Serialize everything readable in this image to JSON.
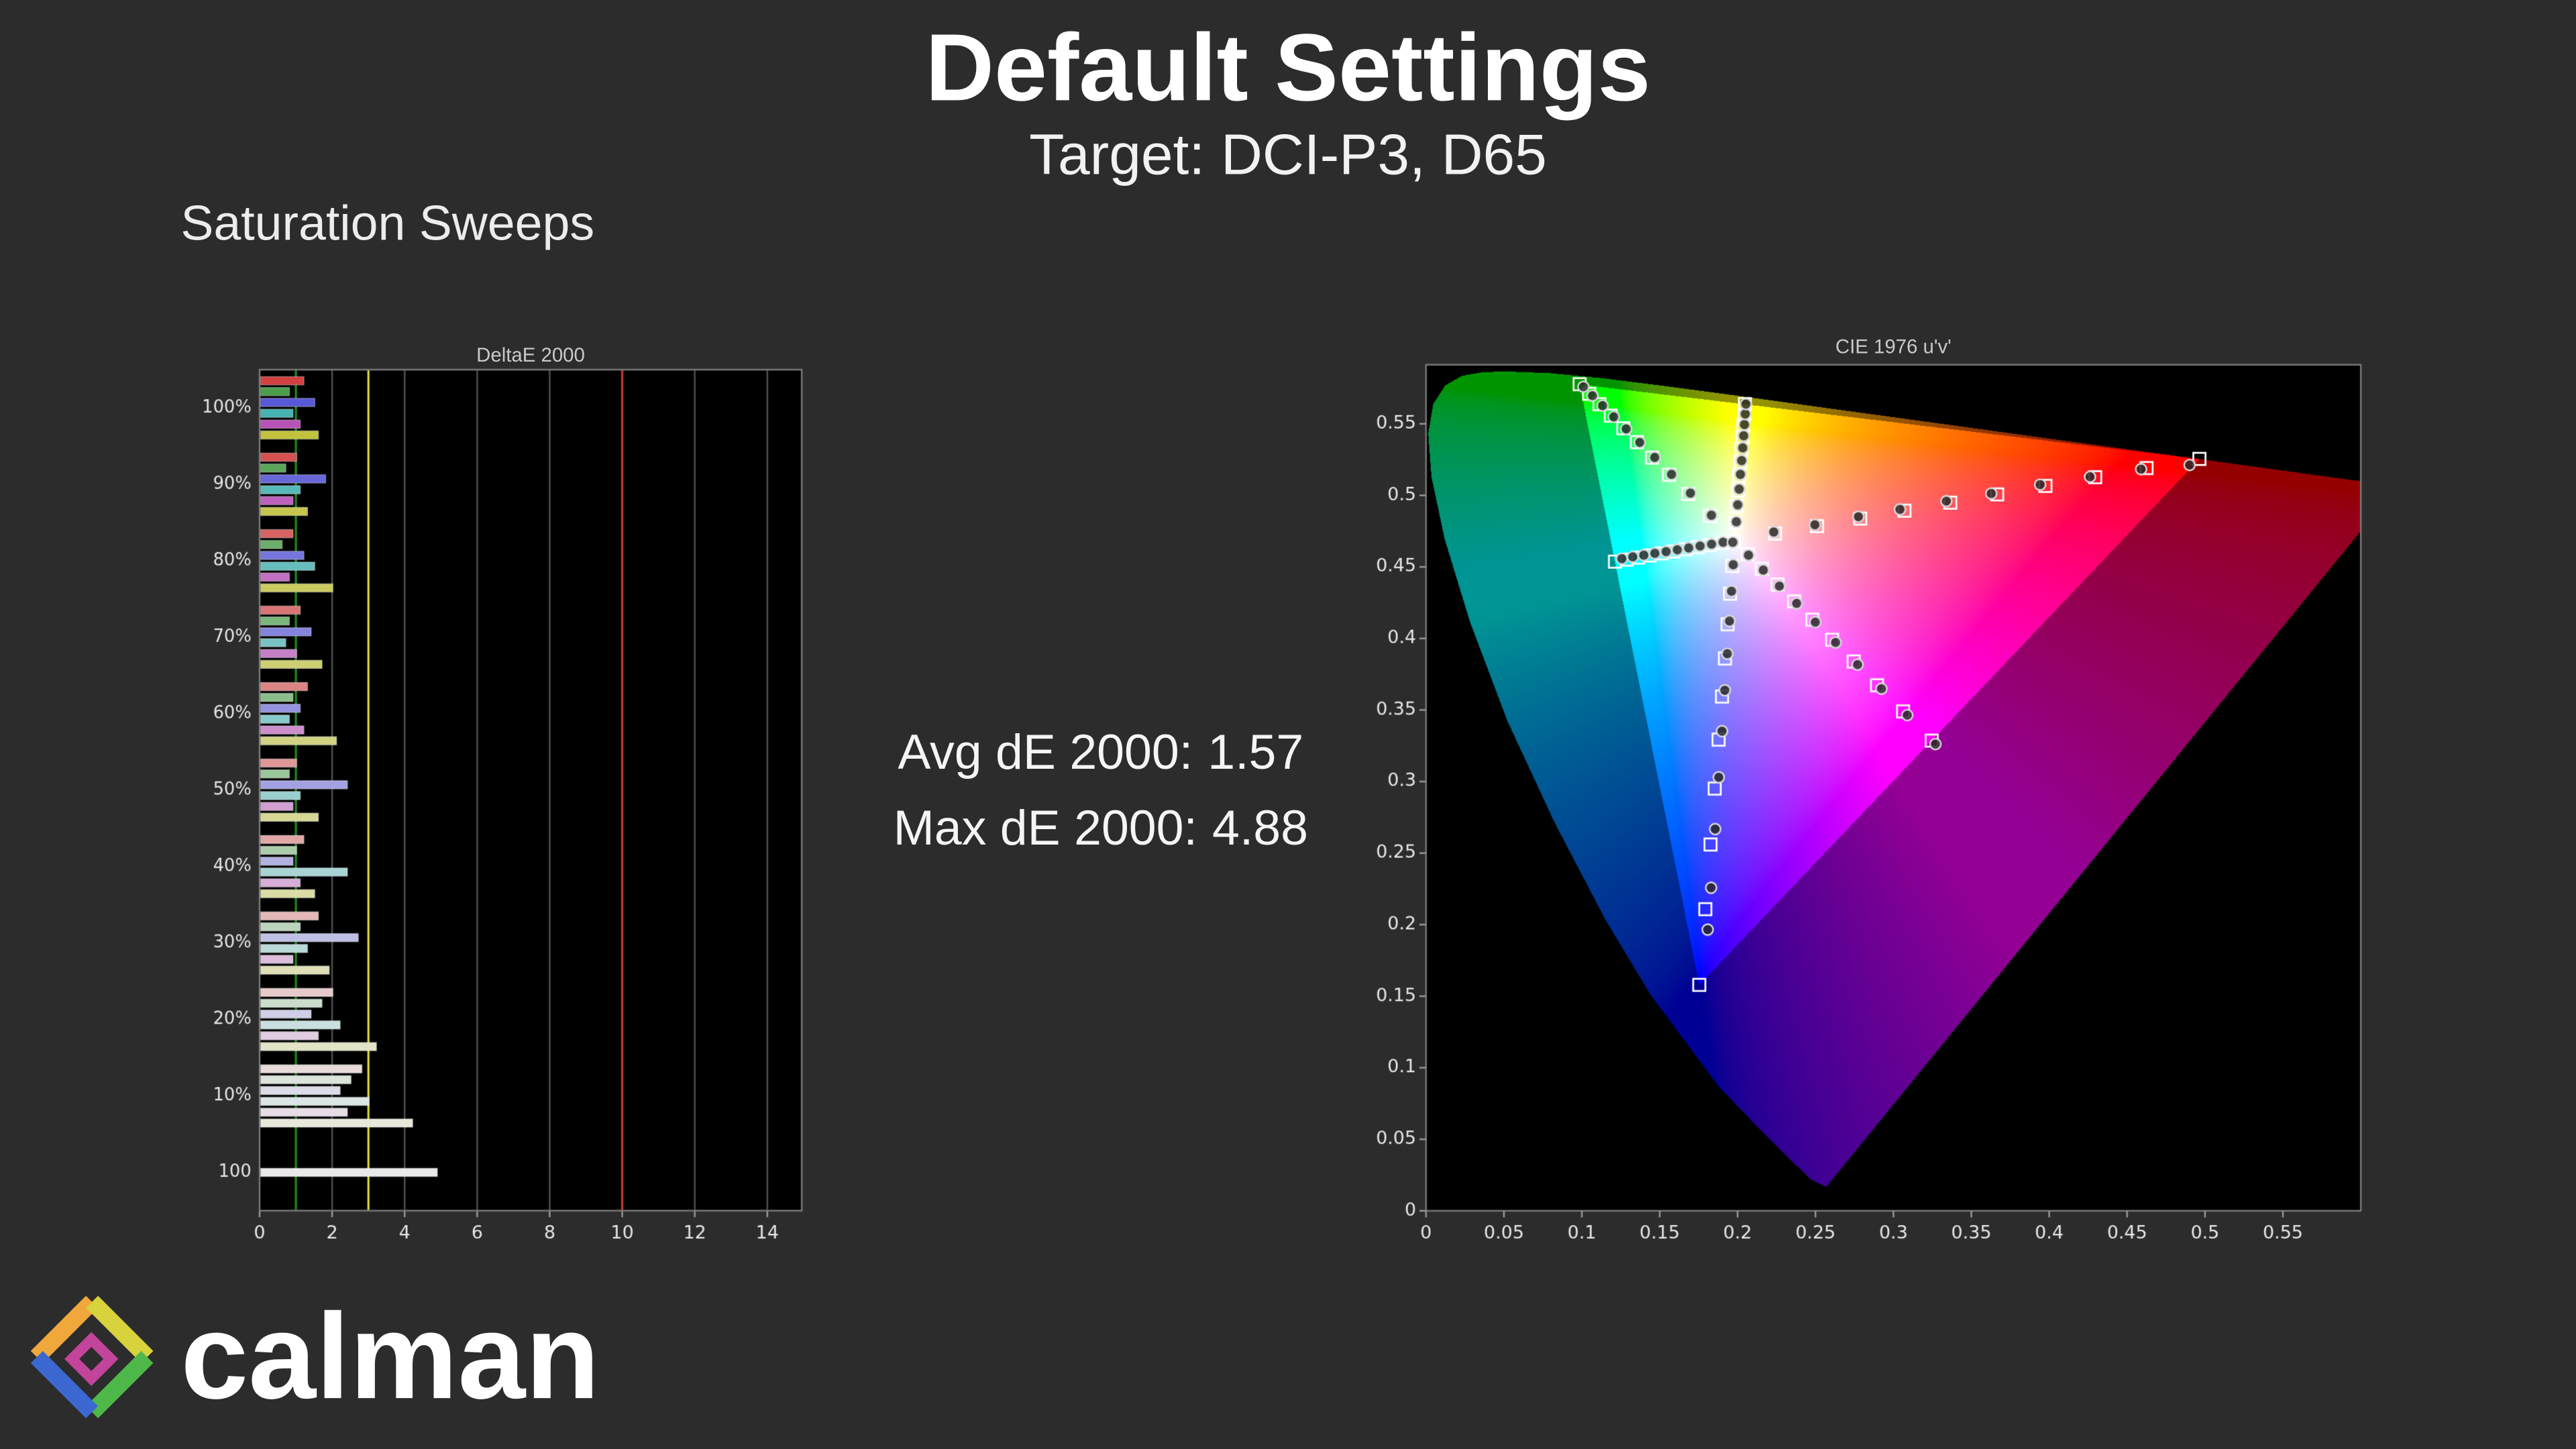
{
  "page": {
    "background": "#2c2c2c"
  },
  "header": {
    "title": "Default Settings",
    "subtitle": "Target: DCI-P3, D65"
  },
  "section_label": "Saturation Sweeps",
  "stats": {
    "avg_label": "Avg dE 2000:",
    "avg_value": "1.57",
    "max_label": "Max dE 2000:",
    "max_value": "4.88"
  },
  "logo": {
    "text": "calman",
    "icon": "calman-diamond-logo"
  },
  "chart_data": [
    {
      "id": "deltae-2000-bars",
      "type": "bar",
      "orientation": "horizontal",
      "title": "DeltaE 2000",
      "x_ticks": [
        "0",
        "2",
        "4",
        "6",
        "8",
        "10",
        "12",
        "14"
      ],
      "x_tick_values": [
        0,
        2,
        4,
        6,
        8,
        10,
        12,
        14
      ],
      "x_max": 14.95,
      "grid": true,
      "reference_lines": [
        {
          "value": 1,
          "color": "#1f8a1f"
        },
        {
          "value": 3,
          "color": "#d8d832"
        },
        {
          "value": 10,
          "color": "#cf3333"
        }
      ],
      "series_order": [
        "red",
        "green",
        "blue",
        "cyan",
        "magenta",
        "yellow"
      ],
      "series_colors": {
        "red": "#d24040",
        "green": "#4a9e4a",
        "blue": "#5858d8",
        "cyan": "#46b2b2",
        "magenta": "#b852b8",
        "yellow": "#c2c23e"
      },
      "neutral_color": "#e9e9e9",
      "groups": [
        {
          "label": "100%",
          "saturation": 1.0,
          "values": [
            1.2,
            0.8,
            1.5,
            0.9,
            1.1,
            1.6
          ]
        },
        {
          "label": "90%",
          "saturation": 0.9,
          "values": [
            1.0,
            0.7,
            1.8,
            1.1,
            0.9,
            1.3
          ]
        },
        {
          "label": "80%",
          "saturation": 0.8,
          "values": [
            0.9,
            0.6,
            1.2,
            1.5,
            0.8,
            2.0
          ]
        },
        {
          "label": "70%",
          "saturation": 0.7,
          "values": [
            1.1,
            0.8,
            1.4,
            0.7,
            1.0,
            1.7
          ]
        },
        {
          "label": "60%",
          "saturation": 0.6,
          "values": [
            1.3,
            0.9,
            1.1,
            0.8,
            1.2,
            2.1
          ]
        },
        {
          "label": "50%",
          "saturation": 0.5,
          "values": [
            1.0,
            0.8,
            2.4,
            1.1,
            0.9,
            1.6
          ]
        },
        {
          "label": "40%",
          "saturation": 0.4,
          "values": [
            1.2,
            1.0,
            0.9,
            2.4,
            1.1,
            1.5
          ]
        },
        {
          "label": "30%",
          "saturation": 0.3,
          "values": [
            1.6,
            1.1,
            2.7,
            1.3,
            0.9,
            1.9
          ]
        },
        {
          "label": "20%",
          "saturation": 0.2,
          "values": [
            2.0,
            1.7,
            1.4,
            2.2,
            1.6,
            3.2
          ]
        },
        {
          "label": "10%",
          "saturation": 0.1,
          "values": [
            2.8,
            2.5,
            2.2,
            3.0,
            2.4,
            4.2
          ]
        },
        {
          "label": "100",
          "saturation": 0.0,
          "values": [
            4.88
          ],
          "use_neutral": true
        }
      ]
    },
    {
      "id": "cie-1976-uv",
      "type": "scatter",
      "title": "CIE 1976 u'v'",
      "gamut_name": "DCI-P3",
      "x_ticks": [
        "0",
        "0.05",
        "0.1",
        "0.15",
        "0.2",
        "0.25",
        "0.3",
        "0.35",
        "0.4",
        "0.45",
        "0.5",
        "0.55"
      ],
      "x_tick_values": [
        0,
        0.05,
        0.1,
        0.15,
        0.2,
        0.25,
        0.3,
        0.35,
        0.4,
        0.45,
        0.5,
        0.55
      ],
      "y_ticks": [
        "0",
        "0.05",
        "0.1",
        "0.15",
        "0.2",
        "0.25",
        "0.3",
        "0.35",
        "0.4",
        "0.45",
        "0.5",
        "0.55"
      ],
      "y_tick_values": [
        0,
        0.05,
        0.1,
        0.15,
        0.2,
        0.25,
        0.3,
        0.35,
        0.4,
        0.45,
        0.5,
        0.55
      ],
      "u_range": [
        0,
        0.6
      ],
      "v_range": [
        0,
        0.5913
      ],
      "white_point_uv": [
        0.1978,
        0.4683
      ],
      "white_measured_uv": [
        0.1969,
        0.4672
      ],
      "p3_triangle_uv": [
        [
          0.4964,
          0.5255
        ],
        [
          0.0986,
          0.5777
        ],
        [
          0.1754,
          0.1579
        ]
      ],
      "spectral_locus_uv": [
        [
          0.2568,
          0.0166
        ],
        [
          0.2461,
          0.0226
        ],
        [
          0.2347,
          0.035
        ],
        [
          0.2161,
          0.0549
        ],
        [
          0.1877,
          0.0871
        ],
        [
          0.1441,
          0.151
        ],
        [
          0.1147,
          0.2044
        ],
        [
          0.0828,
          0.2708
        ],
        [
          0.0521,
          0.3427
        ],
        [
          0.0282,
          0.4117
        ],
        [
          0.0119,
          0.4698
        ],
        [
          0.0035,
          0.5131
        ],
        [
          0.0014,
          0.5432
        ],
        [
          0.0046,
          0.5639
        ],
        [
          0.0123,
          0.577
        ],
        [
          0.0231,
          0.5837
        ],
        [
          0.036,
          0.5862
        ],
        [
          0.0501,
          0.5868
        ],
        [
          0.0792,
          0.5856
        ],
        [
          0.1127,
          0.5821
        ],
        [
          0.1531,
          0.5766
        ],
        [
          0.2026,
          0.5694
        ],
        [
          0.2623,
          0.5604
        ],
        [
          0.3315,
          0.5501
        ],
        [
          0.4035,
          0.5393
        ],
        [
          0.4692,
          0.5296
        ],
        [
          0.5203,
          0.5219
        ],
        [
          0.5565,
          0.5165
        ],
        [
          0.583,
          0.5125
        ],
        [
          0.6005,
          0.5099
        ],
        [
          0.6199,
          0.507
        ],
        [
          0.6234,
          0.5065
        ]
      ],
      "sweeps": [
        {
          "name": "red",
          "targets_uv": [
            [
              0.224,
              0.4733
            ],
            [
              0.251,
              0.4785
            ],
            [
              0.2787,
              0.4838
            ],
            [
              0.3071,
              0.4893
            ],
            [
              0.3365,
              0.4949
            ],
            [
              0.3666,
              0.5007
            ],
            [
              0.3976,
              0.5066
            ],
            [
              0.4295,
              0.5127
            ],
            [
              0.4625,
              0.5191
            ],
            [
              0.4964,
              0.5255
            ]
          ],
          "measured_uv": [
            [
              0.2232,
              0.4744
            ],
            [
              0.2496,
              0.4794
            ],
            [
              0.2775,
              0.4851
            ],
            [
              0.3042,
              0.4902
            ],
            [
              0.334,
              0.496
            ],
            [
              0.3628,
              0.5013
            ],
            [
              0.3942,
              0.5075
            ],
            [
              0.4262,
              0.513
            ],
            [
              0.459,
              0.5183
            ],
            [
              0.4901,
              0.5212
            ]
          ]
        },
        {
          "name": "green",
          "targets_uv": [
            [
              0.1821,
              0.4857
            ],
            [
              0.1683,
              0.501
            ],
            [
              0.156,
              0.5144
            ],
            [
              0.1451,
              0.5264
            ],
            [
              0.1354,
              0.5372
            ],
            [
              0.1266,
              0.5469
            ],
            [
              0.1186,
              0.5557
            ],
            [
              0.1113,
              0.5637
            ],
            [
              0.1047,
              0.571
            ],
            [
              0.0986,
              0.5777
            ]
          ],
          "measured_uv": [
            [
              0.1832,
              0.4861
            ],
            [
              0.1697,
              0.5016
            ],
            [
              0.1576,
              0.5147
            ],
            [
              0.1468,
              0.5265
            ],
            [
              0.1372,
              0.537
            ],
            [
              0.1285,
              0.5464
            ],
            [
              0.1205,
              0.5549
            ],
            [
              0.1133,
              0.5627
            ],
            [
              0.1068,
              0.5697
            ],
            [
              0.101,
              0.5759
            ]
          ]
        },
        {
          "name": "blue",
          "targets_uv": [
            [
              0.1966,
              0.4507
            ],
            [
              0.1952,
              0.4313
            ],
            [
              0.1936,
              0.4099
            ],
            [
              0.1919,
              0.386
            ],
            [
              0.19,
              0.3594
            ],
            [
              0.1878,
              0.3293
            ],
            [
              0.1853,
              0.2951
            ],
            [
              0.1826,
              0.256
            ],
            [
              0.1793,
              0.2108
            ],
            [
              0.1754,
              0.1579
            ]
          ],
          "measured_uv": [
            [
              0.1972,
              0.4515
            ],
            [
              0.1961,
              0.433
            ],
            [
              0.1948,
              0.4122
            ],
            [
              0.1934,
              0.3893
            ],
            [
              0.1918,
              0.3638
            ],
            [
              0.19,
              0.3352
            ],
            [
              0.1879,
              0.303
            ],
            [
              0.1856,
              0.2668
            ],
            [
              0.183,
              0.2258
            ],
            [
              0.1808,
              0.1965
            ]
          ]
        },
        {
          "name": "cyan",
          "targets_uv": [
            [
              0.1899,
              0.4668
            ],
            [
              0.182,
              0.4653
            ],
            [
              0.1743,
              0.4638
            ],
            [
              0.1665,
              0.4623
            ],
            [
              0.1588,
              0.4608
            ],
            [
              0.1511,
              0.4594
            ],
            [
              0.1436,
              0.458
            ],
            [
              0.1361,
              0.4565
            ],
            [
              0.1287,
              0.4551
            ],
            [
              0.1213,
              0.4537
            ]
          ],
          "measured_uv": [
            [
              0.1907,
              0.4672
            ],
            [
              0.1833,
              0.4659
            ],
            [
              0.1759,
              0.4646
            ],
            [
              0.1686,
              0.4633
            ],
            [
              0.1613,
              0.462
            ],
            [
              0.1541,
              0.4607
            ],
            [
              0.1469,
              0.4595
            ],
            [
              0.1398,
              0.4582
            ],
            [
              0.1327,
              0.457
            ],
            [
              0.1257,
              0.4558
            ]
          ]
        },
        {
          "name": "magenta",
          "targets_uv": [
            [
              0.2065,
              0.4588
            ],
            [
              0.2156,
              0.4487
            ],
            [
              0.2256,
              0.4377
            ],
            [
              0.2363,
              0.4259
            ],
            [
              0.248,
              0.4131
            ],
            [
              0.2607,
              0.3991
            ],
            [
              0.2745,
              0.3839
            ],
            [
              0.2895,
              0.3673
            ],
            [
              0.3062,
              0.349
            ],
            [
              0.3246,
              0.3286
            ]
          ],
          "measured_uv": [
            [
              0.207,
              0.4582
            ],
            [
              0.2165,
              0.4478
            ],
            [
              0.2268,
              0.4366
            ],
            [
              0.2379,
              0.4245
            ],
            [
              0.2499,
              0.4114
            ],
            [
              0.2629,
              0.3972
            ],
            [
              0.277,
              0.3817
            ],
            [
              0.2923,
              0.3649
            ],
            [
              0.3089,
              0.3464
            ],
            [
              0.327,
              0.3262
            ]
          ]
        },
        {
          "name": "yellow",
          "targets_uv": [
            [
              0.1987,
              0.4808
            ],
            [
              0.1995,
              0.4925
            ],
            [
              0.2003,
              0.5034
            ],
            [
              0.201,
              0.5136
            ],
            [
              0.2018,
              0.5232
            ],
            [
              0.2025,
              0.5322
            ],
            [
              0.2031,
              0.5408
            ],
            [
              0.2036,
              0.5489
            ],
            [
              0.2042,
              0.5565
            ],
            [
              0.2047,
              0.5638
            ]
          ],
          "measured_uv": [
            [
              0.1992,
              0.4815
            ],
            [
              0.2001,
              0.4934
            ],
            [
              0.201,
              0.5044
            ],
            [
              0.2018,
              0.5147
            ],
            [
              0.2026,
              0.5243
            ],
            [
              0.2033,
              0.5332
            ],
            [
              0.2039,
              0.5416
            ],
            [
              0.2044,
              0.5495
            ],
            [
              0.2049,
              0.5569
            ],
            [
              0.2053,
              0.5638
            ]
          ]
        }
      ]
    }
  ]
}
